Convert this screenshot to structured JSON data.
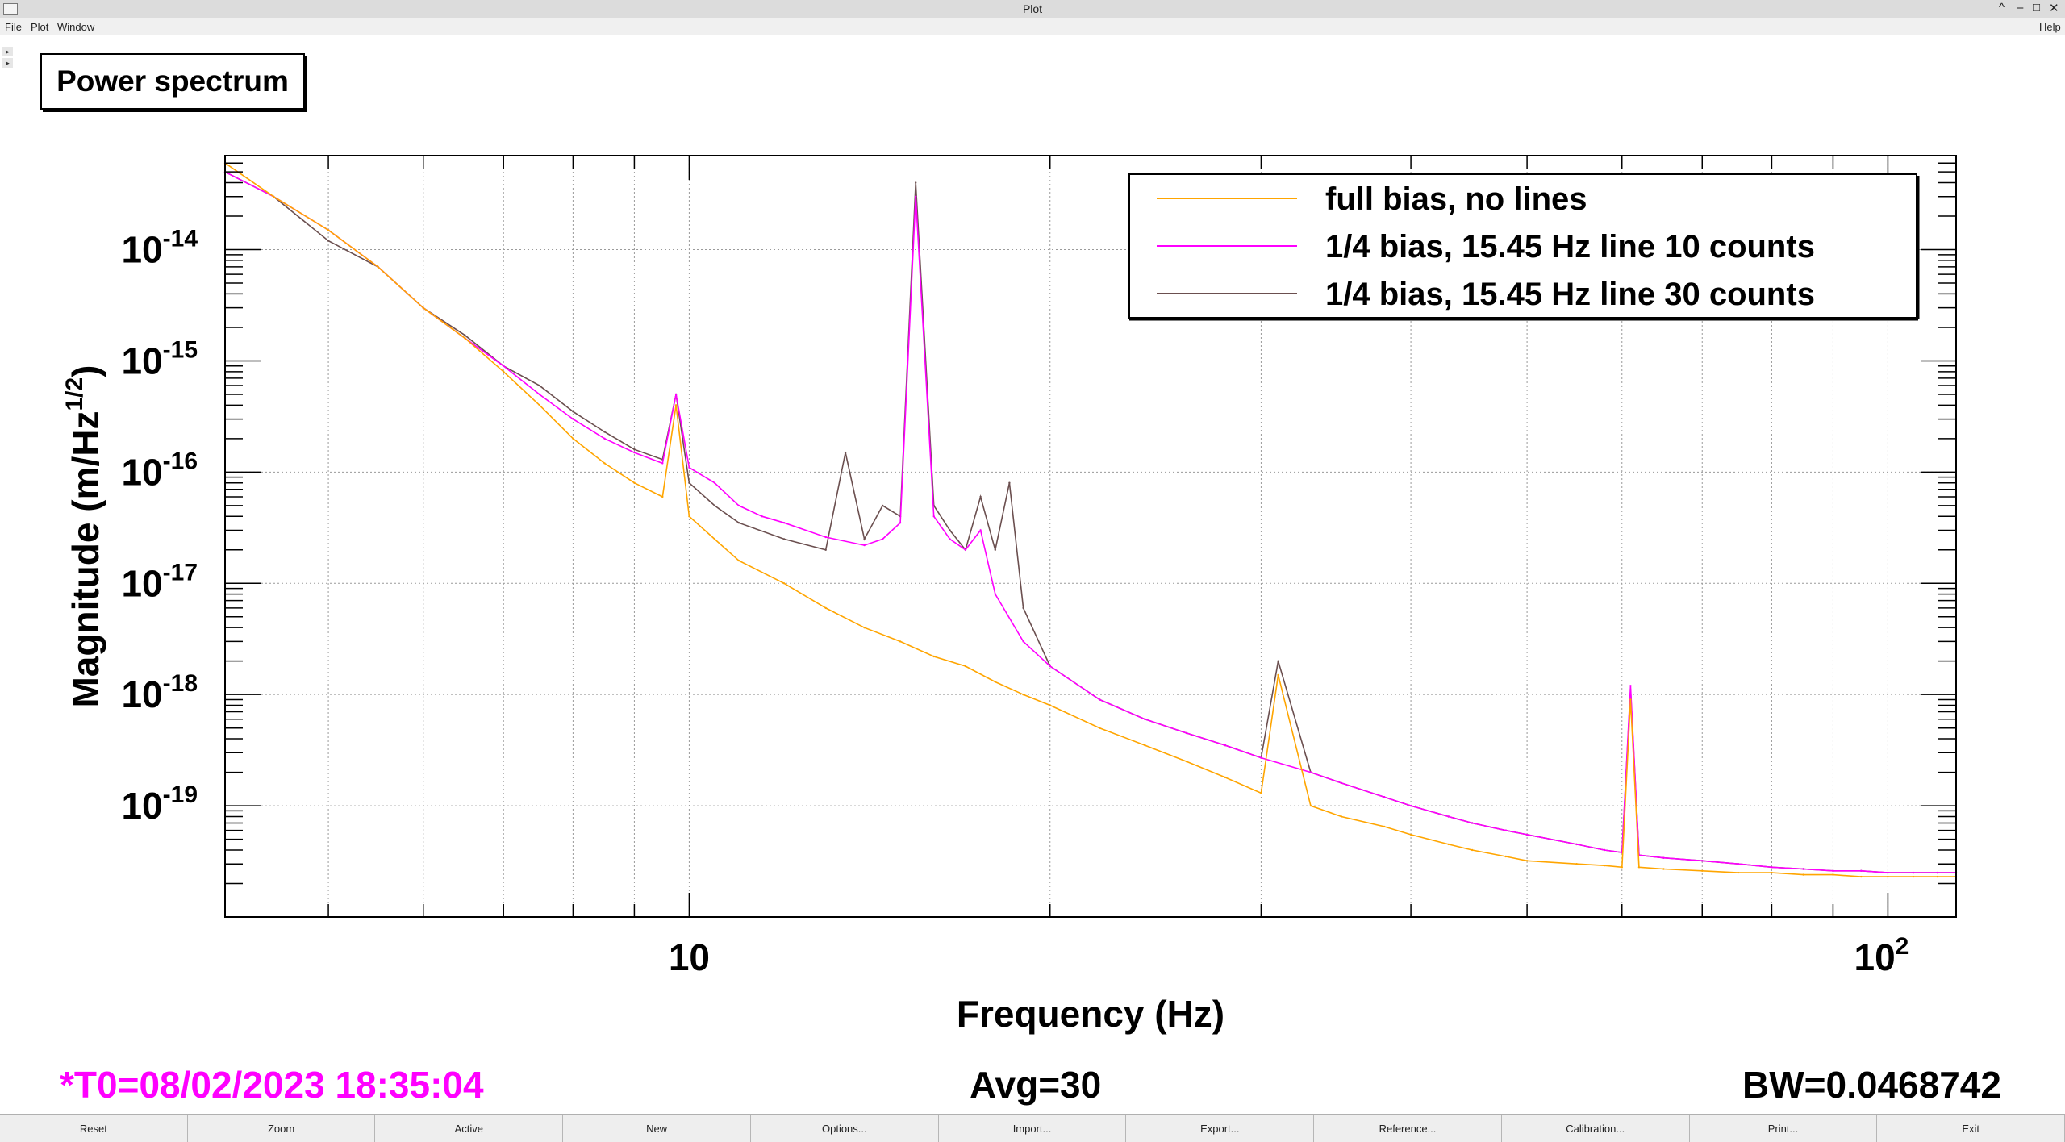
{
  "window": {
    "title": "Plot",
    "controls": [
      "^",
      "–",
      "□",
      "✕"
    ]
  },
  "menu": {
    "file": "File",
    "plot": "Plot",
    "window": "Window",
    "help": "Help"
  },
  "panel_title": "Power spectrum",
  "footer": {
    "t0": "*T0=08/02/2023 18:35:04",
    "avg": "Avg=30",
    "bw": "BW=0.0468742"
  },
  "colors": {
    "series1": "#ffa500",
    "series2": "#ff00ff",
    "series3": "#6b4f4f",
    "footer_accent": "#ff00ff"
  },
  "toolbar": [
    "Reset",
    "Zoom",
    "Active",
    "New",
    "Options...",
    "Import...",
    "Export...",
    "Reference...",
    "Calibration...",
    "Print...",
    "Exit"
  ],
  "chart_data": {
    "type": "line",
    "xlabel": "Frequency (Hz)",
    "ylabel": "Magnitude (m/Hz^1/2)",
    "xscale": "log",
    "yscale": "log",
    "xlim": [
      4.1,
      114
    ],
    "ylim": [
      1e-20,
      7e-14
    ],
    "x_ticks": [
      10,
      100
    ],
    "x_tick_labels": [
      "10",
      "10^2"
    ],
    "y_ticks": [
      1e-19,
      1e-18,
      1e-17,
      1e-16,
      1e-15,
      1e-14
    ],
    "y_tick_labels": [
      "10^-19",
      "10^-18",
      "10^-17",
      "10^-16",
      "10^-15",
      "10^-14"
    ],
    "grid": true,
    "legend_position": "top-right",
    "series": [
      {
        "name": "full bias, no lines",
        "x": [
          4.1,
          4.5,
          5,
          5.5,
          6,
          6.5,
          7,
          7.5,
          8,
          8.5,
          9,
          9.5,
          9.75,
          10,
          10.5,
          11,
          12,
          13,
          14,
          15,
          16,
          17,
          18,
          19,
          20,
          22,
          24,
          26,
          28,
          30,
          31,
          33,
          35,
          38,
          40,
          43,
          45,
          48,
          50,
          55,
          58,
          60,
          61,
          62,
          65,
          70,
          75,
          80,
          85,
          90,
          95,
          100,
          105,
          110,
          114
        ],
        "y": [
          6e-14,
          3e-14,
          1.5e-14,
          7e-15,
          3e-15,
          1.6e-15,
          8e-16,
          4e-16,
          2e-16,
          1.2e-16,
          8e-17,
          6e-17,
          4e-16,
          4e-17,
          2.5e-17,
          1.6e-17,
          1e-17,
          6e-18,
          4e-18,
          3e-18,
          2.2e-18,
          1.8e-18,
          1.3e-18,
          1e-18,
          8e-19,
          5e-19,
          3.5e-19,
          2.5e-19,
          1.8e-19,
          1.3e-19,
          1.5e-18,
          1e-19,
          8e-20,
          6.5e-20,
          5.5e-20,
          4.5e-20,
          4e-20,
          3.5e-20,
          3.2e-20,
          3e-20,
          2.9e-20,
          2.8e-20,
          9e-19,
          2.8e-20,
          2.7e-20,
          2.6e-20,
          2.5e-20,
          2.5e-20,
          2.4e-20,
          2.4e-20,
          2.3e-20,
          2.3e-20,
          2.3e-20,
          2.3e-20,
          2.3e-20
        ]
      },
      {
        "name": "1/4 bias, 15.45 Hz line 10 counts",
        "x": [
          4.1,
          4.5,
          5,
          5.5,
          6,
          6.5,
          7,
          7.5,
          8,
          8.5,
          9,
          9.5,
          9.75,
          10,
          10.5,
          11,
          11.5,
          12,
          13,
          14,
          14.5,
          15,
          15.45,
          16,
          16.5,
          17,
          17.5,
          18,
          19,
          20,
          22,
          24,
          26,
          28,
          30,
          33,
          35,
          38,
          40,
          43,
          45,
          48,
          50,
          55,
          58,
          60,
          61,
          62,
          65,
          70,
          75,
          80,
          85,
          90,
          95,
          100,
          105,
          110,
          114
        ],
        "y": [
          5e-14,
          3e-14,
          1.5e-14,
          7e-15,
          3e-15,
          1.6e-15,
          9e-16,
          5e-16,
          3e-16,
          2e-16,
          1.5e-16,
          1.2e-16,
          5e-16,
          1.1e-16,
          8e-17,
          5e-17,
          4e-17,
          3.5e-17,
          2.6e-17,
          2.2e-17,
          2.5e-17,
          3.5e-17,
          3e-14,
          4e-17,
          2.5e-17,
          2e-17,
          3e-17,
          8e-18,
          3e-18,
          1.8e-18,
          9e-19,
          6e-19,
          4.5e-19,
          3.5e-19,
          2.7e-19,
          2e-19,
          1.6e-19,
          1.2e-19,
          1e-19,
          8e-20,
          7e-20,
          6e-20,
          5.5e-20,
          4.5e-20,
          4e-20,
          3.8e-20,
          1.2e-18,
          3.6e-20,
          3.4e-20,
          3.2e-20,
          3e-20,
          2.8e-20,
          2.7e-20,
          2.6e-20,
          2.6e-20,
          2.5e-20,
          2.5e-20,
          2.5e-20,
          2.5e-20
        ]
      },
      {
        "name": "1/4 bias, 15.45 Hz line 30 counts",
        "x": [
          4.1,
          4.5,
          5,
          5.5,
          6,
          6.5,
          7,
          7.5,
          8,
          8.5,
          9,
          9.5,
          9.75,
          10,
          10.5,
          11,
          12,
          13,
          13.5,
          14,
          14.5,
          15,
          15.45,
          16,
          16.5,
          17,
          17.5,
          18,
          18.5,
          19,
          20,
          22,
          24,
          26,
          28,
          30,
          31,
          33,
          35,
          38,
          40,
          43,
          45,
          48,
          50,
          55,
          58,
          60,
          61,
          62,
          65,
          70,
          75,
          80,
          85,
          90,
          95,
          100,
          105,
          110,
          114
        ],
        "y": [
          5e-14,
          3e-14,
          1.2e-14,
          7e-15,
          3e-15,
          1.7e-15,
          9e-16,
          6e-16,
          3.5e-16,
          2.3e-16,
          1.6e-16,
          1.3e-16,
          5e-16,
          8e-17,
          5e-17,
          3.5e-17,
          2.5e-17,
          2e-17,
          1.5e-16,
          2.5e-17,
          5e-17,
          4e-17,
          4e-14,
          5e-17,
          3e-17,
          2e-17,
          6e-17,
          2e-17,
          8e-17,
          6e-18,
          1.8e-18,
          9e-19,
          6e-19,
          4.5e-19,
          3.5e-19,
          2.7e-19,
          2e-18,
          2e-19,
          1.6e-19,
          1.2e-19,
          1e-19,
          8e-20,
          7e-20,
          6e-20,
          5.5e-20,
          4.5e-20,
          4e-20,
          3.8e-20,
          1.1e-18,
          3.6e-20,
          3.4e-20,
          3.2e-20,
          3e-20,
          2.8e-20,
          2.7e-20,
          2.6e-20,
          2.6e-20,
          2.5e-20,
          2.5e-20,
          2.5e-20,
          2.5e-20
        ]
      }
    ]
  }
}
